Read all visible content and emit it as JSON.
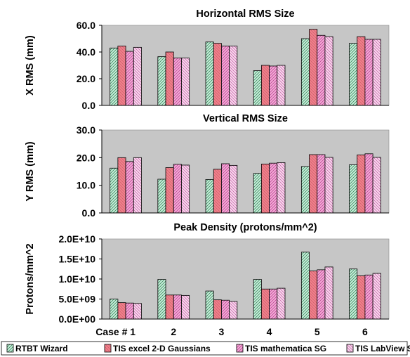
{
  "chart_data": [
    {
      "type": "bar",
      "title": "Horizontal RMS Size",
      "ylabel": "X RMS (mm)",
      "ylim": [
        0,
        60
      ],
      "yticks": [
        "0.0",
        "20.0",
        "40.0",
        "60.0"
      ],
      "grid": false,
      "categories": [
        "Case # 1",
        "2",
        "3",
        "4",
        "5",
        "6"
      ],
      "series": [
        {
          "name": "RTBT Wizard",
          "values": [
            43,
            36.5,
            47.5,
            26,
            50,
            46.5
          ]
        },
        {
          "name": "TIS excel 2-D Gaussians",
          "values": [
            44.5,
            40,
            46.5,
            30,
            57,
            51.5
          ]
        },
        {
          "name": "TIS mathematica SG",
          "values": [
            40.5,
            35.5,
            44.5,
            29.5,
            52.5,
            49.5
          ]
        },
        {
          "name": "TIS LabView SG",
          "values": [
            43.5,
            35.5,
            44.5,
            30,
            51.5,
            49.5
          ]
        }
      ]
    },
    {
      "type": "bar",
      "title": "Vertical RMS Size",
      "ylabel": "Y RMS (mm)",
      "ylim": [
        0,
        30
      ],
      "yticks": [
        "0.0",
        "10.0",
        "20.0",
        "30.0"
      ],
      "grid": false,
      "categories": [
        "Case # 1",
        "2",
        "3",
        "4",
        "5",
        "6"
      ],
      "series": [
        {
          "name": "RTBT Wizard",
          "values": [
            16.2,
            12.2,
            12.1,
            14.3,
            16.8,
            17.4
          ]
        },
        {
          "name": "TIS excel 2-D Gaussians",
          "values": [
            20,
            16.4,
            15.8,
            17.7,
            21.1,
            21
          ]
        },
        {
          "name": "TIS mathematica SG",
          "values": [
            18.6,
            17.6,
            17.8,
            18,
            21.1,
            21.4
          ]
        },
        {
          "name": "TIS LabView SG",
          "values": [
            20,
            17.3,
            17.2,
            18.2,
            20.1,
            20.1
          ]
        }
      ]
    },
    {
      "type": "bar",
      "title": "Peak Density (protons/mm^2)",
      "ylabel": "Protons/mm^2",
      "ylim": [
        0,
        20000000000
      ],
      "yticks": [
        "0.0E+00",
        "5.0E+09",
        "1.0E+10",
        "1.5E+10",
        "2.0E+10"
      ],
      "grid": false,
      "categories": [
        "Case # 1",
        "2",
        "3",
        "4",
        "5",
        "6"
      ],
      "series": [
        {
          "name": "RTBT Wizard",
          "values": [
            5000000000,
            9900000000,
            7000000000,
            9900000000,
            16700000000,
            12500000000
          ]
        },
        {
          "name": "TIS excel 2-D Gaussians",
          "values": [
            4100000000,
            6000000000,
            4800000000,
            7500000000,
            12000000000,
            10800000000
          ]
        },
        {
          "name": "TIS mathematica SG",
          "values": [
            4000000000,
            6000000000,
            4700000000,
            7500000000,
            12300000000,
            11000000000
          ]
        },
        {
          "name": "TIS LabView SG",
          "values": [
            3900000000,
            5900000000,
            4400000000,
            7700000000,
            13000000000,
            11400000000
          ]
        }
      ]
    }
  ],
  "legend": {
    "placement": "bottom",
    "entries": [
      "RTBT Wizard",
      "TIS excel 2-D Gaussians",
      "TIS mathematica SG",
      "TIS LabView SG"
    ]
  },
  "style": {
    "plot_background": "#c6c6c6",
    "series_colors": [
      "#c9f0dd",
      "#ef7f8b",
      "#f6aad8",
      "#fbd9ef"
    ],
    "series_hatch": [
      "#2a7a4a",
      "#9a2f38",
      "#b03d8a",
      "#bd5fa3"
    ]
  }
}
